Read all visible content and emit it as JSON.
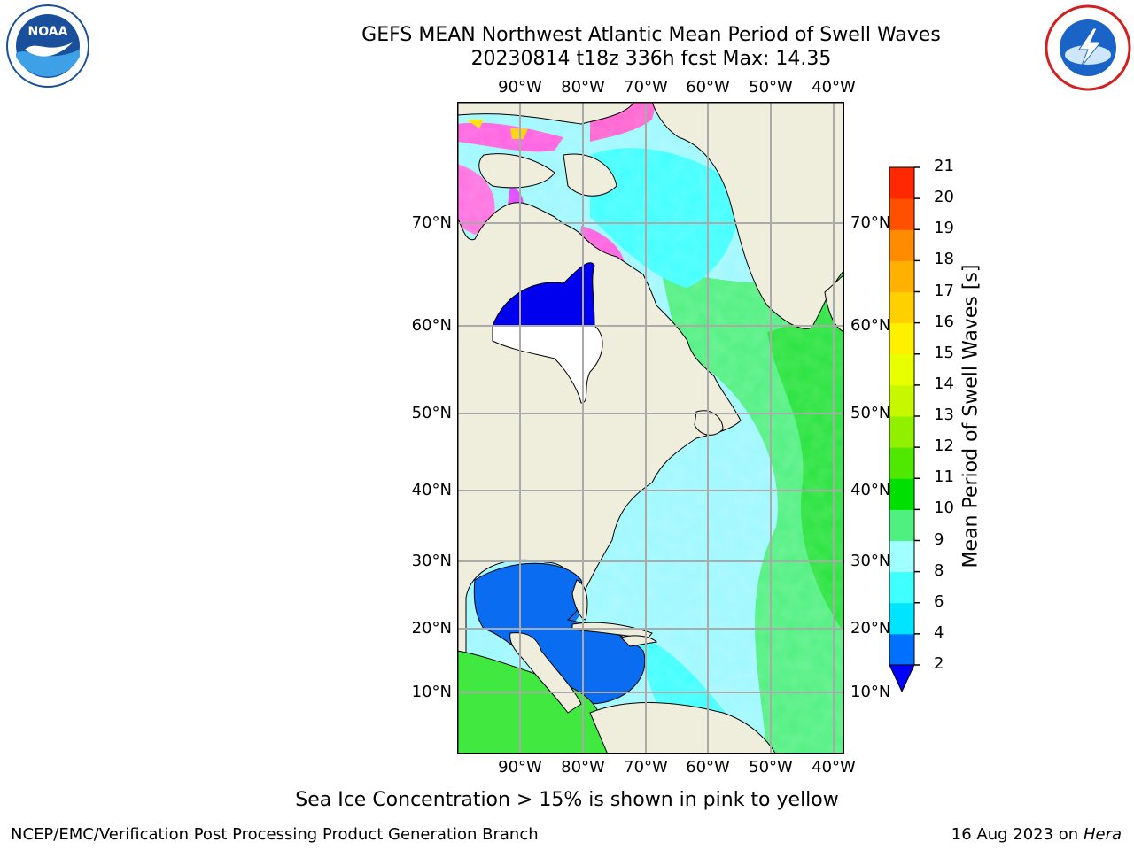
{
  "header": {
    "title_line1": "GEFS MEAN Northwest Atlantic Mean Period of Swell Waves",
    "title_line2": "20230814 t18z 336h fcst   Max: 14.35"
  },
  "logos": {
    "left": {
      "name": "NOAA",
      "icon": "noaa-logo-icon"
    },
    "right": {
      "name": "National Weather Service",
      "icon": "nws-logo-icon"
    }
  },
  "map": {
    "projection": "equidistant",
    "lon_labels": [
      "90°W",
      "80°W",
      "70°W",
      "60°W",
      "50°W",
      "40°W"
    ],
    "lat_labels": [
      "70°N",
      "60°N",
      "50°N",
      "40°N",
      "30°N",
      "20°N",
      "10°N"
    ],
    "land_color": "#efeddc",
    "grid": true
  },
  "colorbar": {
    "title": "Mean Period of Swell Waves [s]",
    "ticks": [
      "2",
      "4",
      "6",
      "8",
      "9",
      "10",
      "11",
      "12",
      "13",
      "14",
      "15",
      "16",
      "17",
      "18",
      "19",
      "20",
      "21"
    ],
    "colors": [
      "#0070ff",
      "#00e5ff",
      "#40ffff",
      "#a0ffff",
      "#50f080",
      "#00e000",
      "#50e800",
      "#90f000",
      "#c8f800",
      "#e8ff00",
      "#fff000",
      "#ffd000",
      "#ffb000",
      "#ff8c00",
      "#ff5000",
      "#ff2800",
      "#ff0000"
    ],
    "under_color": "#0000ff"
  },
  "notes": {
    "ice": "Sea Ice Concentration > 15% is shown in pink to yellow"
  },
  "footer": {
    "left": "NCEP/EMC/Verification Post Processing Product Generation Branch",
    "date": "16 Aug 2023 on",
    "host": "Hera"
  }
}
